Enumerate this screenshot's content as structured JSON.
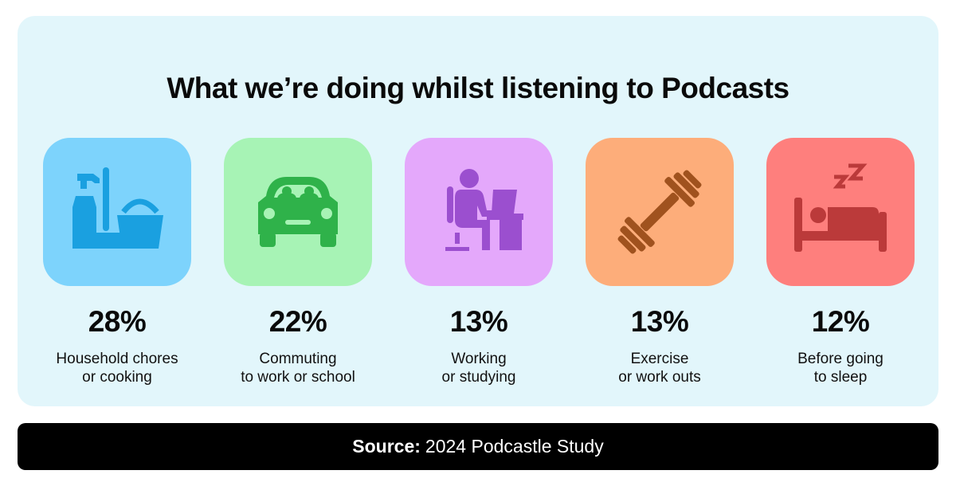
{
  "title": "What we’re doing whilst listening to Podcasts",
  "chart_data": {
    "type": "table",
    "title": "What we’re doing whilst listening to Podcasts",
    "items": [
      {
        "value": "28%",
        "label_lines": [
          "Household chores",
          "or cooking"
        ],
        "icon": "cleaning-supplies-icon",
        "tile_color": "#7dd3fc",
        "icon_color": "#1aa0e0"
      },
      {
        "value": "22%",
        "label_lines": [
          "Commuting",
          "to work or school"
        ],
        "icon": "car-icon",
        "tile_color": "#a7f3b5",
        "icon_color": "#2fb24a"
      },
      {
        "value": "13%",
        "label_lines": [
          "Working",
          "or studying"
        ],
        "icon": "desk-worker-icon",
        "tile_color": "#e4a8fb",
        "icon_color": "#9b4fcf"
      },
      {
        "value": "13%",
        "label_lines": [
          "Exercise",
          "or work outs"
        ],
        "icon": "dumbbell-icon",
        "tile_color": "#fdad7a",
        "icon_color": "#a0521e"
      },
      {
        "value": "12%",
        "label_lines": [
          "Before going",
          "to sleep"
        ],
        "icon": "sleeping-bed-icon",
        "tile_color": "#fe7f7d",
        "icon_color": "#bb3a3a"
      }
    ]
  },
  "source": {
    "label": "Source:",
    "text": "2024 Podcastle Study"
  }
}
